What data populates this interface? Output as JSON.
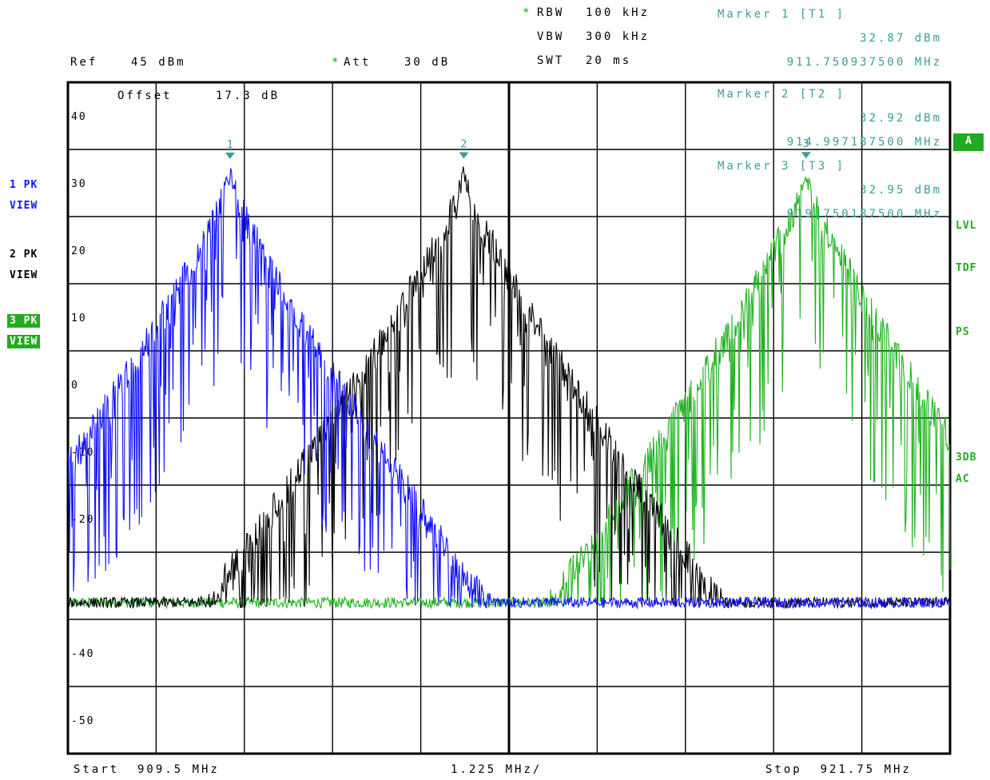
{
  "header": {
    "rbw_label": "RBW",
    "rbw_value": "100 kHz",
    "vbw_label": "VBW",
    "vbw_value": "300 kHz",
    "swt_label": "SWT",
    "swt_value": "20 ms",
    "ref_label": "Ref",
    "ref_value": "45 dBm",
    "att_label": "Att",
    "att_value": "30 dB",
    "offset_label": "Offset",
    "offset_value": "17.3 dB",
    "star": "*"
  },
  "markers": [
    {
      "title": "Marker 1 [T1 ]",
      "level": "32.87 dBm",
      "freq": "911.750937500 MHz",
      "num": "1"
    },
    {
      "title": "Marker 2 [T2 ]",
      "level": "32.92 dBm",
      "freq": "914.997187500 MHz",
      "num": "2"
    },
    {
      "title": "Marker 3 [T3 ]",
      "level": "32.95 dBm",
      "freq": "919.750187500 MHz",
      "num": "3"
    }
  ],
  "left_panel": {
    "trace1_a": "1 PK",
    "trace1_b": "VIEW",
    "trace2_a": "2 PK",
    "trace2_b": "VIEW",
    "trace3_a": "3 PK",
    "trace3_b": "VIEW"
  },
  "right_panel": {
    "a_box": "A",
    "lvl": "LVL",
    "tdf": "TDF",
    "ps": "PS",
    "db3": "3DB",
    "ac": "AC"
  },
  "footer": {
    "start": "Start  909.5 MHz",
    "span_div": "1.225 MHz/",
    "stop": "Stop  921.75 MHz"
  },
  "colors": {
    "trace1": "#1010ff",
    "trace2": "#000000",
    "trace3": "#1fb21f",
    "marker": "#3d9c96",
    "grid": "#000000"
  },
  "chart_data": {
    "type": "line",
    "x_unit": "MHz",
    "y_unit": "dBm",
    "xlim": [
      909.5,
      921.75
    ],
    "ylim": [
      -55,
      45
    ],
    "ytick_labels": [
      "40",
      "30",
      "20",
      "10",
      "0",
      "-10",
      "-20",
      "-40",
      "-50"
    ],
    "ytick_values": [
      40,
      30,
      20,
      10,
      0,
      -10,
      -20,
      -40,
      -50
    ],
    "noise_floor_dBm": -32.5,
    "grid": true,
    "series": [
      {
        "trace": "1",
        "center_mhz": 911.75,
        "peak_dBm": 32.87,
        "peak_freq_mhz": 911.7509375
      },
      {
        "trace": "2",
        "center_mhz": 915.0,
        "peak_dBm": 32.92,
        "peak_freq_mhz": 914.9971875
      },
      {
        "trace": "3",
        "center_mhz": 919.75,
        "peak_dBm": 32.95,
        "peak_freq_mhz": 919.7501875
      }
    ]
  }
}
